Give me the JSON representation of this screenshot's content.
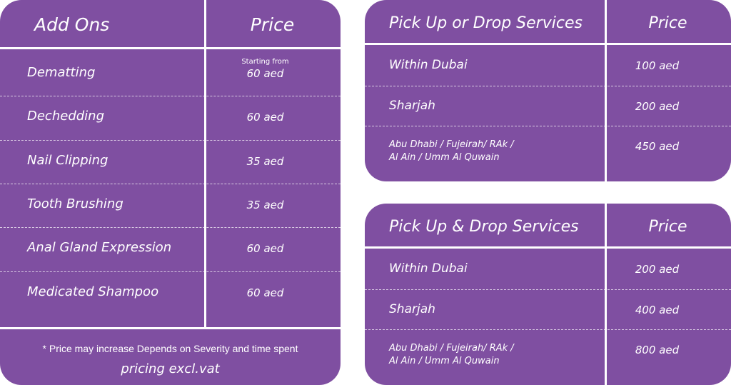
{
  "addons": {
    "header": [
      "Add Ons",
      "Price"
    ],
    "rows": [
      {
        "name": "Dematting",
        "note": "Starting from",
        "price": "60 aed"
      },
      {
        "name": "Dechedding",
        "price": "60 aed"
      },
      {
        "name": "Nail Clipping",
        "price": "35 aed"
      },
      {
        "name": "Tooth Brushing",
        "price": "35 aed"
      },
      {
        "name": "Anal Gland Expression",
        "price": "60 aed"
      },
      {
        "name": "Medicated Shampoo",
        "price": "60 aed"
      }
    ],
    "footnote": "* Price may increase Depends on Severity and time spent",
    "footer": "pricing excl.vat"
  },
  "pickup_or_drop": {
    "header": [
      "Pick Up or Drop Services",
      "Price"
    ],
    "rows": [
      {
        "name": [
          "Within Dubai"
        ],
        "price": "100 aed"
      },
      {
        "name": [
          "Sharjah"
        ],
        "price": "200 aed"
      },
      {
        "name": [
          "Abu Dhabi / Fujeirah/ RAk /",
          "Al Ain / Umm Al Quwain"
        ],
        "price": "450 aed"
      }
    ]
  },
  "pickup_and_drop": {
    "header": [
      "Pick Up & Drop Services",
      "Price"
    ],
    "rows": [
      {
        "name": [
          "Within Dubai"
        ],
        "price": "200 aed"
      },
      {
        "name": [
          "Sharjah"
        ],
        "price": "400 aed"
      },
      {
        "name": [
          "Abu Dhabi / Fujeirah/ RAk /",
          "Al Ain / Umm Al Quwain"
        ],
        "price": "800 aed"
      }
    ]
  }
}
